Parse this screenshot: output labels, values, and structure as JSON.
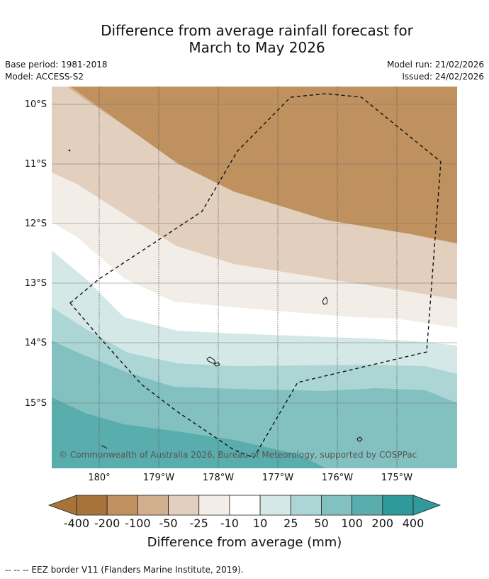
{
  "title": {
    "line1": "Difference from average rainfall forecast for",
    "line2": "March to May 2026"
  },
  "meta": {
    "base_period": "Base period: 1981-2018",
    "model": "Model: ACCESS-S2",
    "model_run": "Model run: 21/02/2026",
    "issued": "Issued: 24/02/2026"
  },
  "map": {
    "lat_labels": [
      "10°S",
      "11°S",
      "12°S",
      "13°S",
      "14°S",
      "15°S"
    ],
    "lon_labels": [
      "180°",
      "179°W",
      "178°W",
      "177°W",
      "176°W",
      "175°W"
    ],
    "copyright": "© Commonwealth of Australia 2026, Bureau of Meteorology, supported by COSPPac"
  },
  "colorbar": {
    "labels": [
      "-400",
      "-200",
      "-100",
      "-50",
      "-25",
      "-10",
      "10",
      "25",
      "50",
      "100",
      "200",
      "400"
    ],
    "colors": [
      "#a8733a",
      "#be915e",
      "#d1af8f",
      "#e2cfbd",
      "#f2ede6",
      "#ffffff",
      "#d4e8e7",
      "#acd5d5",
      "#82c1c0",
      "#5aadad",
      "#2f9a99"
    ],
    "extend_low_color": "#a8733a",
    "extend_high_color": "#2f9a99",
    "title": "Difference from average (mm)"
  },
  "footer": {
    "legend": "--  --  -- EEZ border V11 (Flanders Marine Institute, 2019)."
  }
}
